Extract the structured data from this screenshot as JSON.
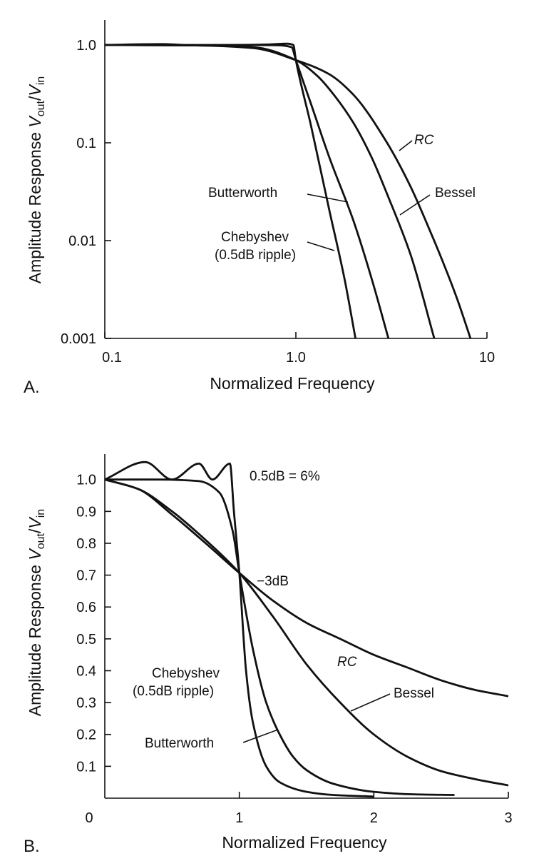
{
  "chart_data": [
    {
      "type": "line",
      "panel_label": "A.",
      "xlabel": "Normalized Frequency",
      "ylabel_main": "Amplitude Response ",
      "ylabel_v1": "V",
      "ylabel_sub1": "out",
      "ylabel_slash": "/",
      "ylabel_v2": "V",
      "ylabel_sub2": "in",
      "x_scale": "log",
      "y_scale": "log",
      "xlim": [
        0.1,
        10
      ],
      "ylim": [
        0.001,
        1.0
      ],
      "x_ticks": [
        {
          "value": 0.1,
          "label": "0.1"
        },
        {
          "value": 1.0,
          "label": "1.0"
        },
        {
          "value": 10,
          "label": "10"
        }
      ],
      "y_ticks": [
        {
          "value": 1.0,
          "label": "1.0"
        },
        {
          "value": 0.1,
          "label": "0.1"
        },
        {
          "value": 0.01,
          "label": "0.01"
        },
        {
          "value": 0.001,
          "label": "0.001"
        }
      ],
      "grid": false,
      "series": [
        {
          "name": "RC",
          "x": [
            0.1,
            0.3,
            0.6,
            1.0,
            1.5,
            2.0,
            3.0,
            4.0,
            5.0,
            6.0,
            7.0,
            8.2
          ],
          "y": [
            1.0,
            0.99,
            0.93,
            0.7,
            0.5,
            0.31,
            0.1,
            0.035,
            0.013,
            0.0055,
            0.0025,
            0.001
          ]
        },
        {
          "name": "Bessel",
          "x": [
            0.1,
            0.3,
            0.6,
            1.0,
            1.3,
            1.6,
            2.0,
            2.5,
            3.0,
            4.0,
            5.3
          ],
          "y": [
            1.0,
            0.99,
            0.95,
            0.7,
            0.48,
            0.3,
            0.16,
            0.07,
            0.03,
            0.007,
            0.001
          ]
        },
        {
          "name": "Butterworth",
          "x": [
            0.1,
            0.5,
            0.8,
            0.95,
            1.0,
            1.2,
            1.5,
            2.0,
            2.5,
            3.05
          ],
          "y": [
            1.0,
            1.0,
            0.995,
            0.95,
            0.7,
            0.25,
            0.07,
            0.016,
            0.004,
            0.001
          ]
        },
        {
          "name": "Chebyshev (0.5dB ripple)",
          "x": [
            0.1,
            0.2,
            0.3,
            0.5,
            0.7,
            0.9,
            0.97,
            1.0,
            1.2,
            1.5,
            1.8,
            2.05
          ],
          "y": [
            1.0,
            1.02,
            0.99,
            1.0,
            1.01,
            1.03,
            1.0,
            0.7,
            0.15,
            0.02,
            0.004,
            0.001
          ]
        }
      ],
      "annotations": {
        "rc": "RC",
        "bessel": "Bessel",
        "butterworth": "Butterworth",
        "chebyshev_line1": "Chebyshev",
        "chebyshev_line2": "(0.5dB ripple)"
      }
    },
    {
      "type": "line",
      "panel_label": "B.",
      "xlabel": "Normalized Frequency",
      "ylabel_main": "Amplitude Response ",
      "ylabel_v1": "V",
      "ylabel_sub1": "out",
      "ylabel_slash": "/",
      "ylabel_v2": "V",
      "ylabel_sub2": "in",
      "x_scale": "linear",
      "y_scale": "linear",
      "xlim": [
        0,
        3
      ],
      "ylim": [
        0,
        1.08
      ],
      "x_ticks": [
        {
          "value": 0,
          "label": "0"
        },
        {
          "value": 1,
          "label": "1"
        },
        {
          "value": 2,
          "label": "2"
        },
        {
          "value": 3,
          "label": "3"
        }
      ],
      "y_ticks": [
        {
          "value": 1.0,
          "label": "1.0"
        },
        {
          "value": 0.9,
          "label": "0.9"
        },
        {
          "value": 0.8,
          "label": "0.8"
        },
        {
          "value": 0.7,
          "label": "0.7"
        },
        {
          "value": 0.6,
          "label": "0.6"
        },
        {
          "value": 0.5,
          "label": "0.5"
        },
        {
          "value": 0.4,
          "label": "0.4"
        },
        {
          "value": 0.3,
          "label": "0.3"
        },
        {
          "value": 0.2,
          "label": "0.2"
        },
        {
          "value": 0.1,
          "label": "0.1"
        }
      ],
      "grid": false,
      "series": [
        {
          "name": "RC",
          "x": [
            0,
            0.25,
            0.5,
            0.75,
            1.0,
            1.25,
            1.5,
            1.75,
            2.0,
            2.25,
            2.5,
            2.75,
            3.0
          ],
          "y": [
            1.0,
            0.97,
            0.89,
            0.8,
            0.707,
            0.62,
            0.55,
            0.5,
            0.45,
            0.41,
            0.37,
            0.34,
            0.32
          ]
        },
        {
          "name": "Bessel",
          "x": [
            0,
            0.25,
            0.5,
            0.75,
            1.0,
            1.25,
            1.5,
            1.75,
            2.0,
            2.25,
            2.5,
            2.75,
            3.0
          ],
          "y": [
            1.0,
            0.97,
            0.9,
            0.81,
            0.707,
            0.57,
            0.42,
            0.3,
            0.2,
            0.13,
            0.085,
            0.06,
            0.04
          ]
        },
        {
          "name": "Butterworth",
          "x": [
            0,
            0.4,
            0.7,
            0.85,
            0.95,
            1.0,
            1.1,
            1.2,
            1.3,
            1.4,
            1.5,
            1.7,
            2.0,
            2.3,
            2.6
          ],
          "y": [
            1.0,
            1.0,
            0.995,
            0.96,
            0.84,
            0.707,
            0.47,
            0.3,
            0.2,
            0.13,
            0.088,
            0.045,
            0.02,
            0.012,
            0.01
          ]
        },
        {
          "name": "Chebyshev (0.5dB ripple)",
          "x": [
            0,
            0.3,
            0.5,
            0.7,
            0.8,
            0.93,
            0.96,
            1.0,
            1.05,
            1.1,
            1.2,
            1.3,
            1.5,
            1.7,
            2.0
          ],
          "y": [
            1.0,
            1.055,
            1.0,
            1.05,
            1.0,
            1.05,
            0.9,
            0.707,
            0.4,
            0.24,
            0.1,
            0.05,
            0.02,
            0.01,
            0.005
          ]
        }
      ],
      "annotations": {
        "ripple": "0.5dB = 6%",
        "minus3db": "−3dB",
        "rc": "RC",
        "bessel": "Bessel",
        "butterworth": "Butterworth",
        "chebyshev_line1": "Chebyshev",
        "chebyshev_line2": "(0.5dB ripple)"
      }
    }
  ]
}
